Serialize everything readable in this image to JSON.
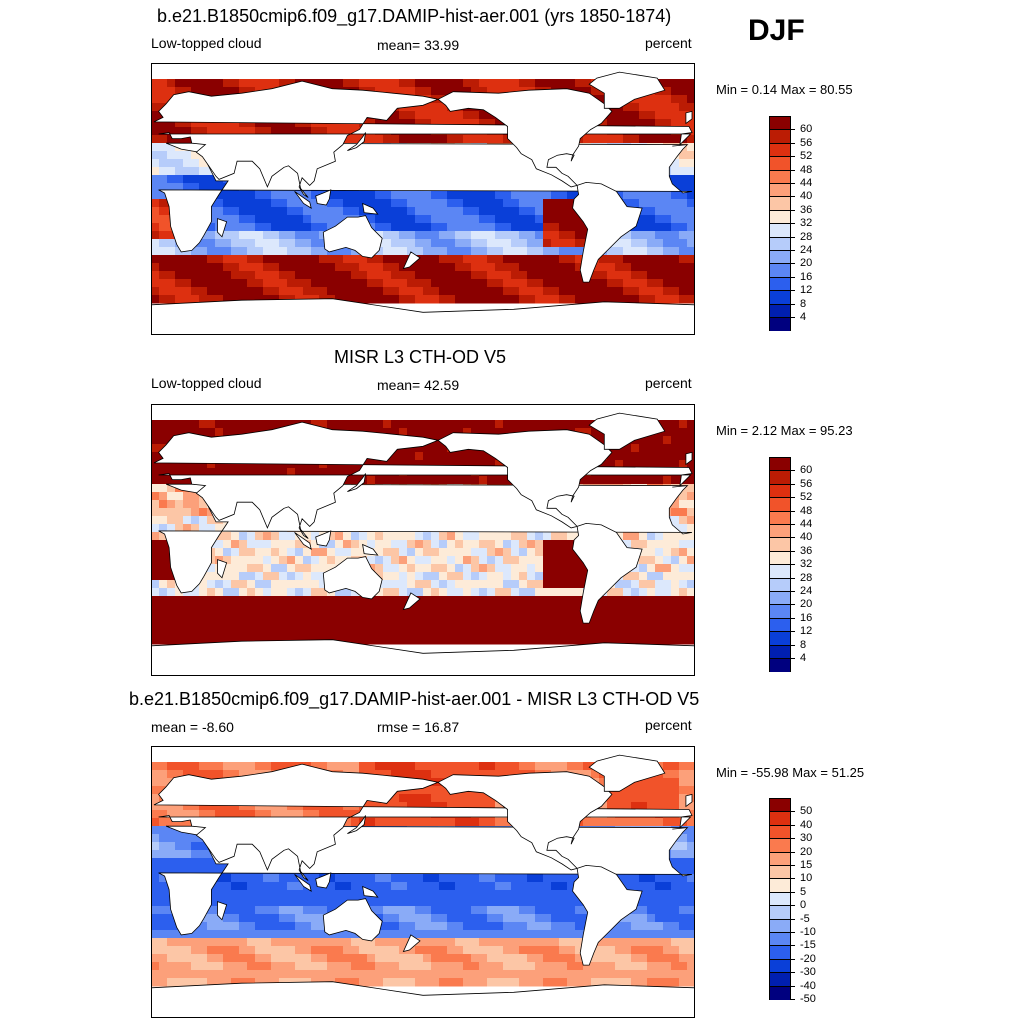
{
  "season": "DJF",
  "colors": {
    "seq": [
      "#00007f",
      "#001fb0",
      "#0a3fd8",
      "#2c5fee",
      "#5b86f4",
      "#8aabf7",
      "#b6ccfa",
      "#dce8fc",
      "#fdebd8",
      "#fcc6a6",
      "#fca07a",
      "#fa7a4e",
      "#f1532a",
      "#dd3010",
      "#bb1c04",
      "#8a0000"
    ],
    "diff": [
      "#00007f",
      "#001fb0",
      "#0a3fd8",
      "#2c5fee",
      "#5b86f4",
      "#8aabf7",
      "#b6ccfa",
      "#dce8fc",
      "#fdebd8",
      "#fcc6a6",
      "#fca07a",
      "#fa7a4e",
      "#f1532a",
      "#dd3010",
      "#8a0000"
    ]
  },
  "panels": [
    {
      "id": "model",
      "title": "b.e21.B1850cmip6.f09_g17.DAMIP-hist-aer.001 (yrs 1850-1874)",
      "left": "Low-topped cloud",
      "center": "mean=  33.99",
      "right": "percent",
      "minmax": "Min =   0.14 Max =  80.55",
      "levels": [
        "60",
        "56",
        "52",
        "48",
        "44",
        "40",
        "36",
        "32",
        "28",
        "24",
        "20",
        "16",
        "12",
        "8",
        "4"
      ]
    },
    {
      "id": "obs",
      "title": "MISR L3 CTH-OD V5",
      "left": "Low-topped cloud",
      "center": "mean=  42.59",
      "right": "percent",
      "minmax": "Min =   2.12 Max =  95.23",
      "levels": [
        "60",
        "56",
        "52",
        "48",
        "44",
        "40",
        "36",
        "32",
        "28",
        "24",
        "20",
        "16",
        "12",
        "8",
        "4"
      ]
    },
    {
      "id": "diff",
      "title": "b.e21.B1850cmip6.f09_g17.DAMIP-hist-aer.001 - MISR L3 CTH-OD V5",
      "left": "mean =  -8.60",
      "center": "rmse =  16.87",
      "right": "percent",
      "minmax": "Min = -55.98 Max =  51.25",
      "levels": [
        "50",
        "40",
        "30",
        "20",
        "15",
        "10",
        "5",
        "0",
        "-5",
        "-10",
        "-15",
        "-20",
        "-30",
        "-40",
        "-50"
      ]
    }
  ]
}
